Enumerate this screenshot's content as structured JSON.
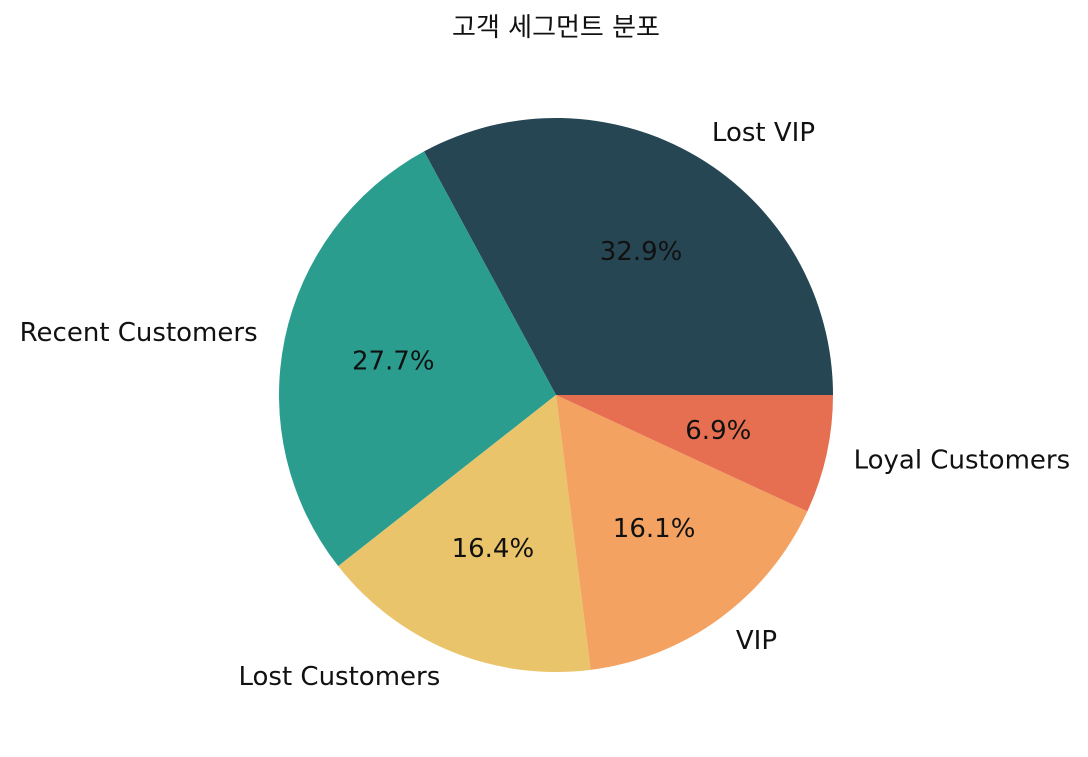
{
  "chart_data": {
    "type": "pie",
    "title": "고객 세그먼트 분포",
    "categories": [
      "Lost VIP",
      "Recent Customers",
      "Lost Customers",
      "VIP",
      "Loyal Customers"
    ],
    "values": [
      32.9,
      27.7,
      16.4,
      16.1,
      6.9
    ],
    "value_labels": [
      "32.9%",
      "27.7%",
      "16.4%",
      "16.1%",
      "6.9%"
    ],
    "colors": [
      "#264653",
      "#2a9d8f",
      "#e9c46a",
      "#f4a261",
      "#e76f51"
    ],
    "start_angle_deg": 0,
    "direction": "counterclockwise",
    "legend": "none"
  }
}
